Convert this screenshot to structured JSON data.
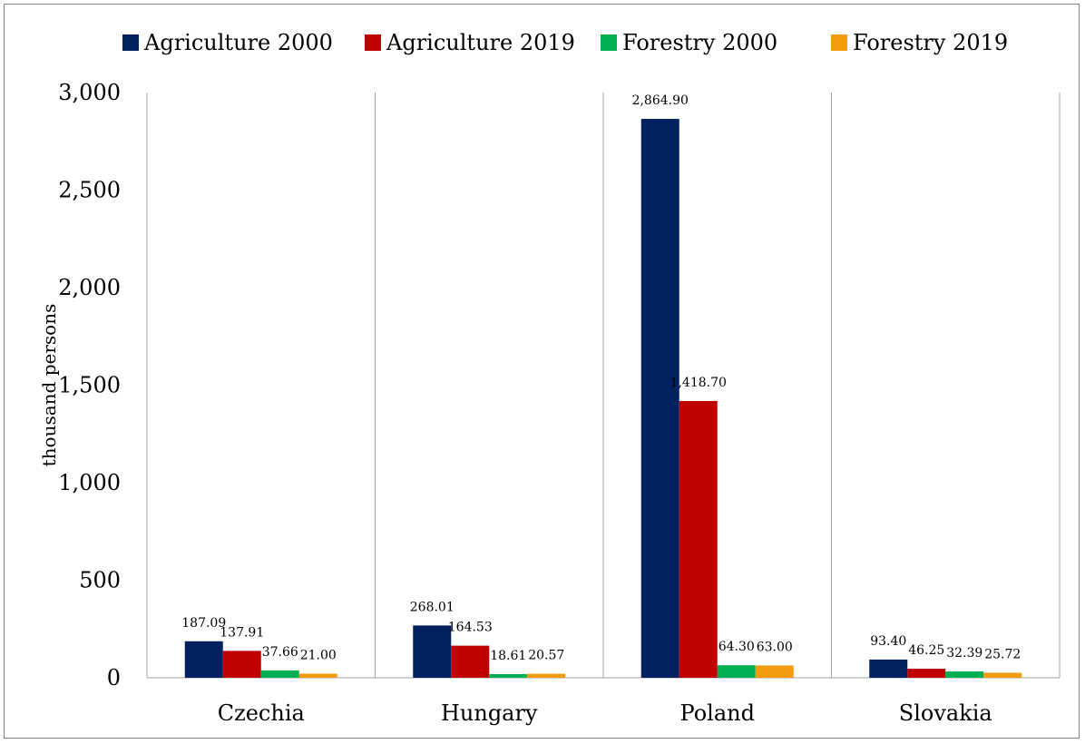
{
  "chart_data": {
    "type": "bar",
    "title": "",
    "xlabel": "",
    "ylabel": "thousand persons",
    "ylim": [
      0,
      3000
    ],
    "ytick_step": 500,
    "yticks": [
      "0",
      "500",
      "1,000",
      "1,500",
      "2,000",
      "2,500",
      "3,000"
    ],
    "grid": "vertical separators between categories",
    "legend_position": "top",
    "categories": [
      "Czechia",
      "Hungary",
      "Poland",
      "Slovakia"
    ],
    "series": [
      {
        "name": "Agriculture 2000",
        "color": "#002060",
        "values": [
          187.09,
          268.01,
          2864.9,
          93.4
        ],
        "labels": [
          "187.09",
          "268.01",
          "2,864.90",
          "93.40"
        ]
      },
      {
        "name": "Agriculture 2019",
        "color": "#C00000",
        "values": [
          137.91,
          164.53,
          1418.7,
          46.25
        ],
        "labels": [
          "137.91",
          "164.53",
          "1,418.70",
          "46.25"
        ]
      },
      {
        "name": "Forestry 2000",
        "color": "#00B050",
        "values": [
          37.66,
          18.61,
          64.3,
          32.39
        ],
        "labels": [
          "37.66",
          "18.61",
          "64.30",
          "32.39"
        ]
      },
      {
        "name": "Forestry 2019",
        "color": "#F39C12",
        "values": [
          21.0,
          20.57,
          63.0,
          25.72
        ],
        "labels": [
          "21.00",
          "20.57",
          "63.00",
          "25.72"
        ]
      }
    ]
  }
}
